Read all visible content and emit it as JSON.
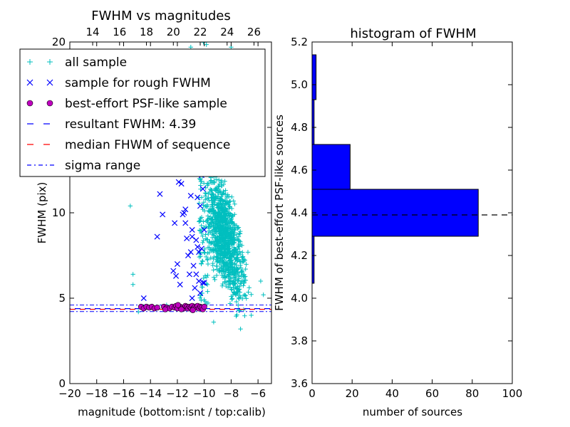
{
  "chart_data": [
    {
      "type": "scatter",
      "title": "FWHM vs magnitudes",
      "xlabel": "magnitude (bottom:isnt / top:calib)",
      "ylabel": "FWHM (pix)",
      "xlim": [
        -20,
        -5
      ],
      "ylim": [
        0,
        20
      ],
      "x_ticks": [
        "−20",
        "−18",
        "−16",
        "−14",
        "−12",
        "−10",
        "−8",
        "−6"
      ],
      "x_tick_values": [
        -20,
        -18,
        -16,
        -14,
        -12,
        -10,
        -8,
        -6
      ],
      "y_ticks": [
        "0",
        "5",
        "10",
        "15",
        "20"
      ],
      "y_tick_values": [
        0,
        5,
        10,
        15,
        20
      ],
      "top_axis_ticks": [
        "14",
        "16",
        "18",
        "20",
        "22",
        "24",
        "26"
      ],
      "top_axis_positions": [
        -18.3,
        -16.3,
        -14.3,
        -12.3,
        -10.3,
        -8.3,
        -6.3
      ],
      "legend": {
        "placement": "upper-left",
        "entries": [
          {
            "label": "all sample",
            "marker": "+",
            "color": "#00bfbf"
          },
          {
            "label": "sample for rough FWHM",
            "marker": "x",
            "color": "#0000ff"
          },
          {
            "label": "best-effort PSF-like sample",
            "marker": "o",
            "color": "#bf00bf"
          },
          {
            "label": "resultant FWHM: 4.39",
            "line": "dashed",
            "color": "#0000ff"
          },
          {
            "label": "median FHWM of sequence",
            "line": "dashed",
            "color": "#ff0000"
          },
          {
            "label": "sigma range",
            "line": "dashdot",
            "color": "#0000ff"
          }
        ]
      },
      "reference_lines": {
        "resultant_fwhm": 4.39,
        "median_fwhm": 4.39,
        "sigma_low": 4.22,
        "sigma_high": 4.6
      },
      "series": [
        {
          "name": "all sample",
          "marker": "+",
          "color": "#00bfbf",
          "points": [
            [
              -15.5,
              10.4
            ],
            [
              -15.3,
              6.4
            ],
            [
              -15.3,
              5.8
            ],
            [
              -14.9,
              4.2
            ],
            [
              -14.5,
              4.5
            ],
            [
              -12.8,
              4.6
            ],
            [
              -10.4,
              14.9
            ],
            [
              -9.3,
              3.6
            ],
            [
              -8.0,
              19.7
            ],
            [
              -11.0,
              19.7
            ],
            [
              -5.6,
              5.2
            ],
            [
              -5.8,
              6.0
            ],
            [
              -6.5,
              4.0
            ],
            [
              -7.3,
              3.2
            ]
          ],
          "cloud": {
            "count": 1100,
            "x_range": [
              -10.5,
              -5.1
            ],
            "y_range": [
              3.0,
              20.0
            ],
            "peak_x": -8.5
          }
        },
        {
          "name": "sample for rough FWHM",
          "marker": "x",
          "color": "#0000ff",
          "points": [
            [
              -14.5,
              5.0
            ],
            [
              -13.5,
              8.6
            ],
            [
              -13.3,
              11.1
            ],
            [
              -13.1,
              9.9
            ],
            [
              -12.2,
              9.4
            ],
            [
              -12.1,
              6.3
            ],
            [
              -12.0,
              7.0
            ],
            [
              -11.9,
              11.8
            ],
            [
              -11.7,
              11.7
            ],
            [
              -11.6,
              9.9
            ],
            [
              -11.4,
              9.4
            ],
            [
              -11.4,
              10.2
            ],
            [
              -11.3,
              8.5
            ],
            [
              -11.2,
              7.5
            ],
            [
              -11.1,
              6.4
            ],
            [
              -11.0,
              11.0
            ],
            [
              -10.9,
              9.0
            ],
            [
              -10.9,
              8.6
            ],
            [
              -10.8,
              6.9
            ],
            [
              -10.7,
              5.6
            ],
            [
              -10.5,
              10.9
            ],
            [
              -10.5,
              8.0
            ],
            [
              -10.4,
              7.7
            ],
            [
              -10.3,
              10.4
            ],
            [
              -10.2,
              7.9
            ],
            [
              -10.1,
              5.9
            ],
            [
              -10.2,
              12.2
            ],
            [
              -10.1,
              11.4
            ],
            [
              -10.0,
              9.0
            ],
            [
              -10.0,
              5.9
            ],
            [
              -11.5,
              10.0
            ],
            [
              -12.3,
              6.6
            ],
            [
              -11.8,
              5.8
            ],
            [
              -10.6,
              6.4
            ],
            [
              -10.4,
              6.0
            ],
            [
              -10.3,
              5.3
            ],
            [
              -10.6,
              8.4
            ],
            [
              -11.0,
              7.7
            ],
            [
              -10.9,
              5.0
            ]
          ]
        },
        {
          "name": "best-effort PSF-like sample",
          "marker": "o",
          "color": "#bf00bf",
          "points": [
            [
              -14.7,
              4.5
            ],
            [
              -14.5,
              4.4
            ],
            [
              -14.3,
              4.5
            ],
            [
              -14.1,
              4.45
            ],
            [
              -13.9,
              4.5
            ],
            [
              -13.7,
              4.4
            ],
            [
              -13.5,
              4.45
            ],
            [
              -13.0,
              4.5
            ],
            [
              -12.8,
              4.45
            ],
            [
              -12.6,
              4.4
            ],
            [
              -12.4,
              4.5
            ],
            [
              -12.2,
              4.45
            ],
            [
              -12.1,
              4.55
            ],
            [
              -12.0,
              4.4
            ],
            [
              -11.8,
              4.5
            ],
            [
              -11.6,
              4.45
            ],
            [
              -11.5,
              4.4
            ],
            [
              -11.4,
              4.55
            ],
            [
              -11.3,
              4.5
            ],
            [
              -11.2,
              4.4
            ],
            [
              -11.1,
              4.5
            ],
            [
              -11.0,
              4.45
            ],
            [
              -10.9,
              4.55
            ],
            [
              -10.8,
              4.4
            ],
            [
              -10.7,
              4.5
            ],
            [
              -10.6,
              4.45
            ],
            [
              -10.5,
              4.55
            ],
            [
              -10.4,
              4.4
            ],
            [
              -10.3,
              4.5
            ],
            [
              -10.2,
              4.45
            ],
            [
              -10.1,
              4.35
            ],
            [
              -10.0,
              4.5
            ],
            [
              -12.9,
              4.35
            ],
            [
              -11.7,
              4.35
            ],
            [
              -11.95,
              4.6
            ],
            [
              -10.85,
              4.3
            ]
          ]
        }
      ]
    },
    {
      "type": "bar",
      "orientation": "horizontal",
      "title": "histogram of FWHM",
      "xlabel": "number of sources",
      "ylabel": "FWHM of best-effort PSF-like sources",
      "xlim": [
        0,
        100
      ],
      "ylim": [
        3.6,
        5.2
      ],
      "x_ticks": [
        "0",
        "20",
        "40",
        "60",
        "80",
        "100"
      ],
      "x_tick_values": [
        0,
        20,
        40,
        60,
        80,
        100
      ],
      "y_ticks": [
        "3.6",
        "3.8",
        "4.0",
        "4.2",
        "4.4",
        "4.6",
        "4.8",
        "5.0",
        "5.2"
      ],
      "y_tick_values": [
        3.6,
        3.8,
        4.0,
        4.2,
        4.4,
        4.6,
        4.8,
        5.0,
        5.2
      ],
      "bar_color": "#0000ff",
      "reference_line": 4.39,
      "bins": [
        {
          "from": 4.07,
          "to": 4.29,
          "count": 1
        },
        {
          "from": 4.29,
          "to": 4.51,
          "count": 83
        },
        {
          "from": 4.51,
          "to": 4.72,
          "count": 19
        },
        {
          "from": 4.72,
          "to": 4.93,
          "count": 1
        },
        {
          "from": 4.93,
          "to": 5.14,
          "count": 2
        }
      ]
    }
  ]
}
